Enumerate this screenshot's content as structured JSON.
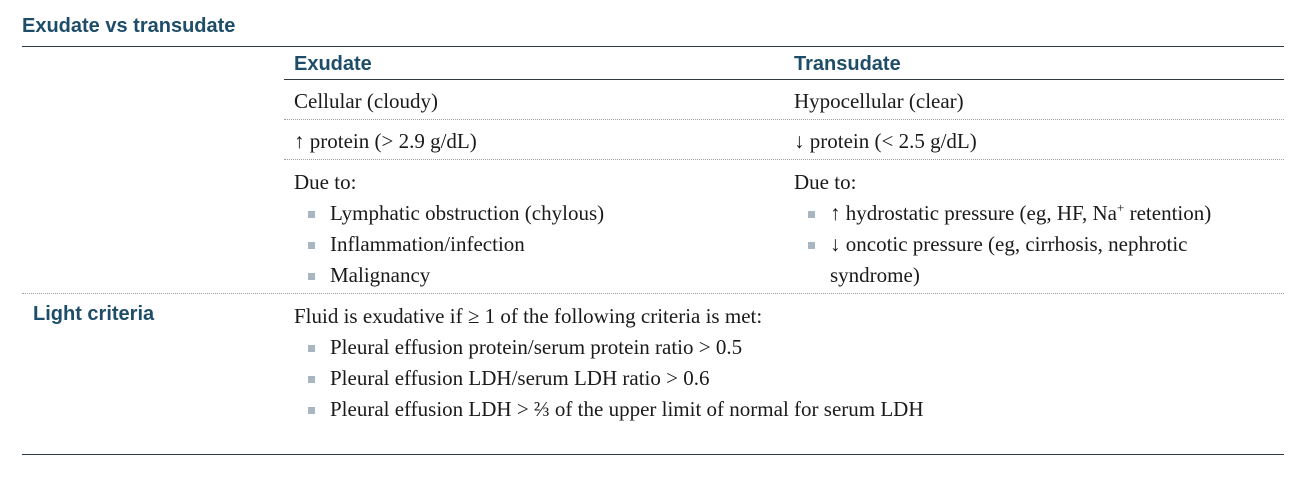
{
  "title": "Exudate vs transudate",
  "columns": {
    "exudate": "Exudate",
    "transudate": "Transudate"
  },
  "rows": {
    "appearance": {
      "exudate": "Cellular (cloudy)",
      "transudate": "Hypocellular (clear)"
    },
    "protein": {
      "exudate": "↑ protein (> 2.9 g/dL)",
      "transudate": "↓ protein (< 2.5 g/dL)"
    },
    "due_to": {
      "exudate_intro": "Due to:",
      "exudate_items": [
        "Lymphatic obstruction (chylous)",
        "Inflammation/infection",
        "Malignancy"
      ],
      "transudate_intro": "Due to:",
      "transudate_item1_pre": "↑ hydrostatic pressure (eg, HF, Na",
      "transudate_item1_sup": "+",
      "transudate_item1_post": " retention)",
      "transudate_item2": "↓ oncotic pressure (eg, cirrhosis, nephrotic syndrome)"
    }
  },
  "light_criteria": {
    "label": "Light criteria",
    "intro": "Fluid is exudative if ≥ 1 of the following criteria is met:",
    "items": [
      "Pleural effusion protein/serum protein ratio > 0.5",
      "Pleural effusion LDH/serum LDH ratio > 0.6",
      "Pleural effusion LDH > ⅔ of the upper limit of normal for serum LDH"
    ]
  },
  "colors": {
    "heading": "#1e4d69",
    "bullet": "#a7b6c0",
    "rule": "#2f3b44"
  }
}
